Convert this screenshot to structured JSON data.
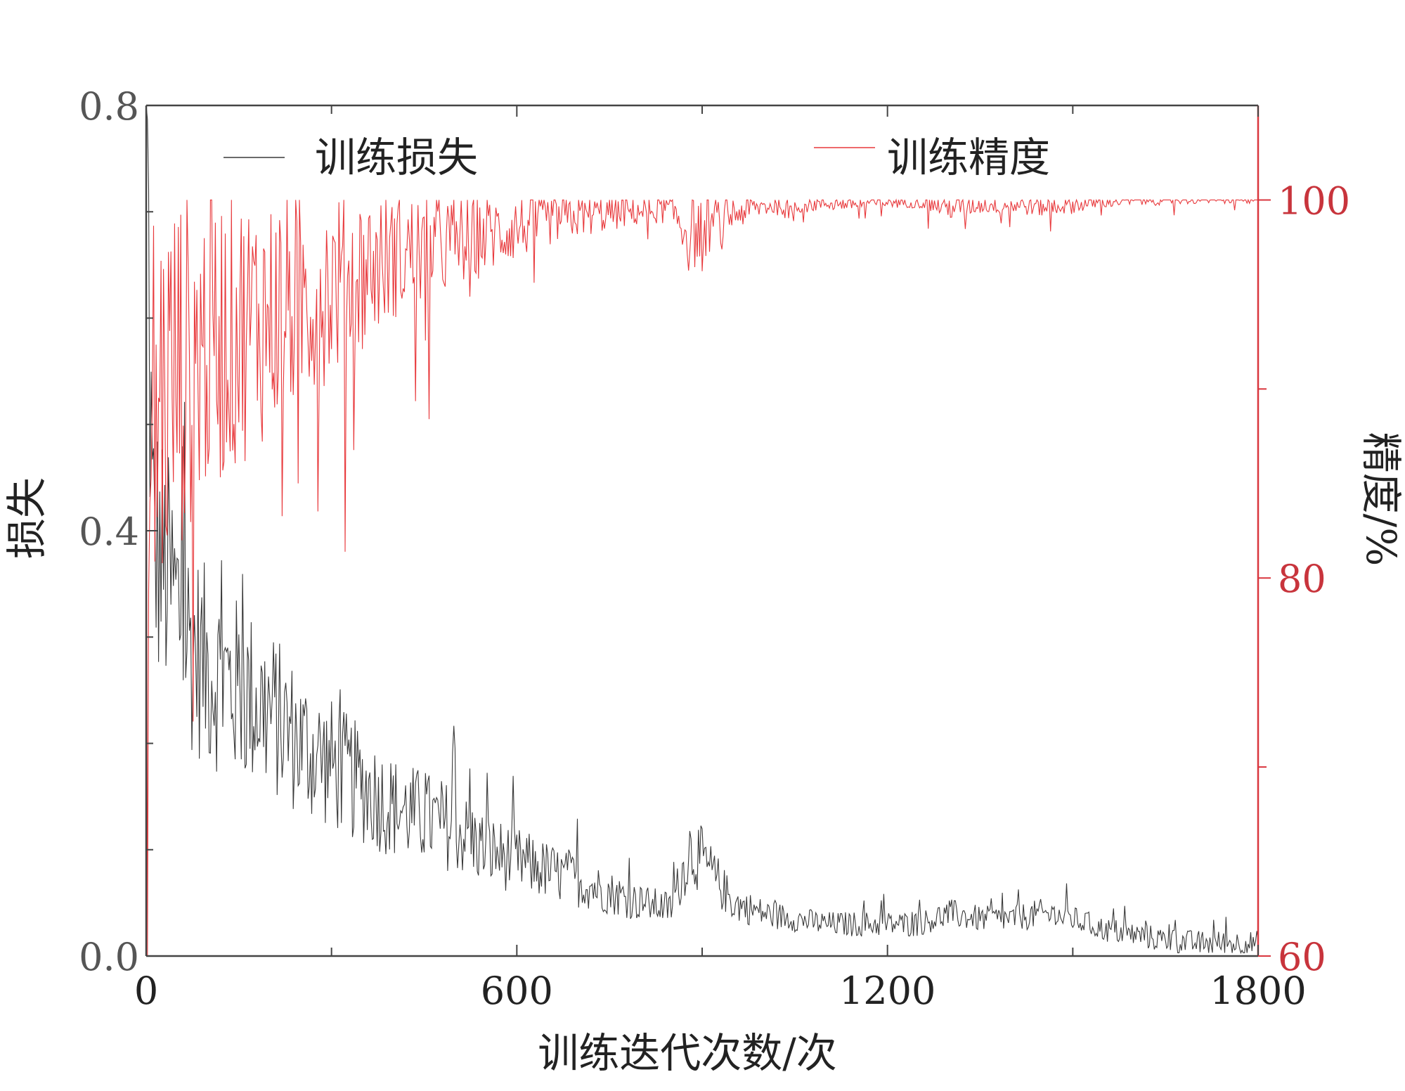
{
  "colors": {
    "loss": "#3a3a3a",
    "accuracy": "#e8393c",
    "left_axis": "#444444",
    "right_axis": "#d9363e",
    "right_axis_labels": "#c8343c"
  },
  "chart_data": {
    "type": "line",
    "xlabel": "训练迭代次数/次",
    "ylabel_left": "损失",
    "ylabel_right": "精度/%",
    "xlim": [
      0,
      1800
    ],
    "ylim_left": [
      0.0,
      0.8
    ],
    "ylim_right": [
      60,
      105
    ],
    "x_ticks": [
      0,
      600,
      1200,
      1800
    ],
    "x_tick_labels": [
      "0",
      "600",
      "1200",
      "1800"
    ],
    "y_left_ticks": [
      0.0,
      0.4,
      0.8
    ],
    "y_left_tick_labels": [
      "0.0",
      "0.4",
      "0.8"
    ],
    "y_right_ticks": [
      60,
      80,
      100
    ],
    "y_right_tick_labels": [
      "60",
      "80",
      "100"
    ],
    "grid": false,
    "legend": [
      "训练损失",
      "训练精度"
    ],
    "series": [
      {
        "name": "训练损失",
        "axis": "left",
        "x": [
          0,
          10,
          25,
          50,
          75,
          100,
          150,
          200,
          250,
          300,
          350,
          400,
          450,
          500,
          550,
          600,
          650,
          700,
          750,
          800,
          850,
          880,
          900,
          950,
          1000,
          1050,
          1100,
          1150,
          1200,
          1250,
          1300,
          1350,
          1400,
          1450,
          1500,
          1550,
          1600,
          1650,
          1700,
          1750,
          1800
        ],
        "values": [
          0.8,
          0.4,
          0.37,
          0.33,
          0.29,
          0.27,
          0.25,
          0.23,
          0.2,
          0.18,
          0.16,
          0.14,
          0.13,
          0.12,
          0.1,
          0.09,
          0.08,
          0.07,
          0.06,
          0.05,
          0.045,
          0.1,
          0.09,
          0.05,
          0.04,
          0.035,
          0.03,
          0.03,
          0.03,
          0.03,
          0.04,
          0.035,
          0.035,
          0.04,
          0.035,
          0.025,
          0.02,
          0.015,
          0.012,
          0.012,
          0.012
        ]
      },
      {
        "name": "训练精度",
        "axis": "right",
        "x": [
          0,
          10,
          25,
          50,
          75,
          100,
          150,
          200,
          250,
          300,
          350,
          400,
          450,
          500,
          550,
          600,
          650,
          700,
          750,
          800,
          850,
          880,
          900,
          950,
          1000,
          1050,
          1100,
          1150,
          1200,
          1250,
          1300,
          1350,
          1400,
          1450,
          1500,
          1550,
          1600,
          1650,
          1700,
          1750,
          1800
        ],
        "values": [
          61,
          84,
          86,
          88,
          89,
          90,
          91,
          92,
          93,
          94,
          95,
          96,
          96.5,
          97,
          97.5,
          98,
          98.5,
          98.8,
          99,
          99.2,
          99.3,
          97.5,
          98,
          99,
          99.5,
          99.6,
          99.7,
          99.7,
          99.8,
          99.8,
          99.4,
          99.6,
          99.6,
          99.5,
          99.6,
          99.8,
          99.9,
          99.95,
          100,
          100,
          100
        ]
      }
    ]
  }
}
